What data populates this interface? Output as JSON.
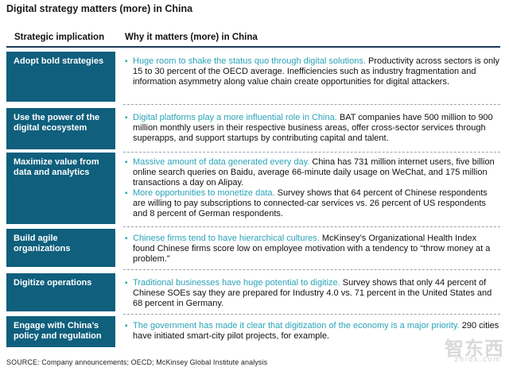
{
  "title": "Digital strategy matters (more) in China",
  "columns": {
    "left": "Strategic implication",
    "right": "Why it matters (more) in China"
  },
  "rows": [
    {
      "label": "Adopt bold strategies",
      "bullets": [
        {
          "highlight": "Huge room to shake the status quo through digital solutions.",
          "text": " Productivity across sectors is only 15 to 30 percent of the OECD average. Inefficiencies such as industry fragmentation and information asymmetry along value chain create opportunities for digital attackers."
        }
      ]
    },
    {
      "label": "Use the power of the digital ecosystem",
      "bullets": [
        {
          "highlight": "Digital platforms play a more influential role in China.",
          "text": " BAT companies have 500 million to 900 million monthly users in their respective business areas, offer cross-sector services through superapps, and support startups by contributing capital and talent."
        }
      ]
    },
    {
      "label": "Maximize value from data and analytics",
      "bullets": [
        {
          "highlight": "Massive amount of data generated every day.",
          "text": " China has 731 million internet users, five billion online search queries on Baidu, average 66-minute daily usage on WeChat, and 175 million transactions a day on Alipay."
        },
        {
          "highlight": "More opportunities to monetize data.",
          "text": " Survey shows that 64 percent of Chinese respondents are willing to pay subscriptions to connected-car services vs. 26 percent of US respondents and 8 percent of German respondents."
        }
      ]
    },
    {
      "label": "Build agile organizations",
      "bullets": [
        {
          "highlight": "Chinese firms tend to have hierarchical cultures.",
          "text": " McKinsey’s Organizational Health Index found Chinese firms score low on employee motivation with a tendency to “throw money at a problem.”"
        }
      ]
    },
    {
      "label": "Digitize operations",
      "bullets": [
        {
          "highlight": "Traditional businesses have huge potential to digitize.",
          "text": " Survey shows that only 44 percent of Chinese SOEs say they are prepared for Industry 4.0 vs. 71 percent in the United States and 68 percent in Germany."
        }
      ]
    },
    {
      "label": "Engage with China’s policy and regulation",
      "bullets": [
        {
          "highlight": "The government has made it clear that digitization of the economy is a major priority.",
          "text": " 290 cities have initiated smart-city pilot projects, for example."
        }
      ]
    }
  ],
  "source": "SOURCE:  Company announcements; OECD; McKinsey Global Institute analysis",
  "watermark": {
    "text": "智东西",
    "sub": "zhidx.com"
  },
  "colors": {
    "label_bg": "#0f5f7d",
    "highlight": "#2aa3b8",
    "header_rule": "#1b3a5c"
  }
}
